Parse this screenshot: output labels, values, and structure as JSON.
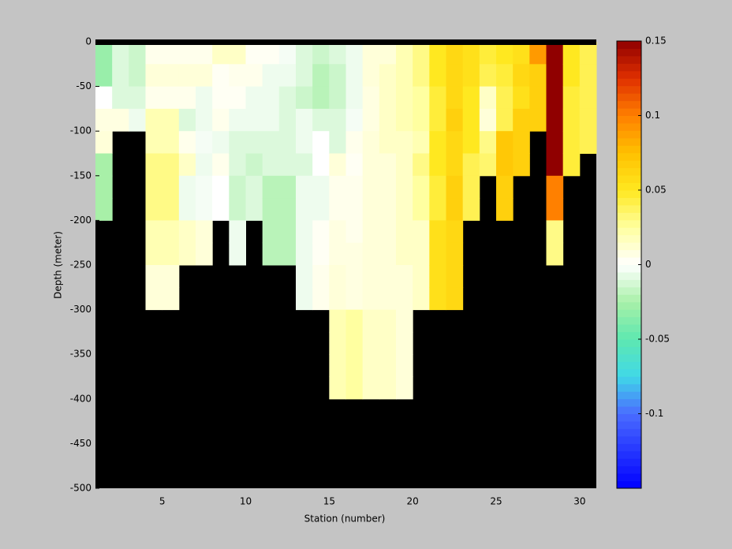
{
  "chart_data": {
    "type": "heatmap",
    "xlabel": "Station (number)",
    "ylabel": "Depth (meter)",
    "x": [
      1,
      2,
      3,
      4,
      5,
      6,
      7,
      8,
      9,
      10,
      11,
      12,
      13,
      14,
      15,
      16,
      17,
      18,
      19,
      20,
      21,
      22,
      23,
      24,
      25,
      26,
      27,
      28,
      29,
      30
    ],
    "y": [
      0,
      -25,
      -50,
      -75,
      -100,
      -125,
      -150,
      -175,
      -200,
      -225,
      -250,
      -275,
      -300,
      -325,
      -350,
      -375,
      -400,
      -425,
      -450,
      -475
    ],
    "z": [
      [
        -0.03,
        -0.03,
        0,
        0.008,
        0.01,
        -0.025,
        -0.025,
        -0.025,
        null,
        null,
        null,
        null,
        null,
        null,
        null,
        null,
        null,
        null,
        null,
        null
      ],
      [
        -0.01,
        -0.01,
        -0.01,
        0.008,
        null,
        null,
        null,
        null,
        null,
        null,
        null,
        null,
        null,
        null,
        null,
        null,
        null,
        null,
        null,
        null
      ],
      [
        -0.015,
        -0.015,
        -0.01,
        -0.005,
        null,
        null,
        null,
        null,
        null,
        null,
        null,
        null,
        null,
        null,
        null,
        null,
        null,
        null,
        null,
        null
      ],
      [
        0.005,
        0.01,
        0.005,
        0.02,
        0.02,
        0.03,
        0.03,
        0.03,
        0.02,
        0.02,
        0.01,
        0.01,
        null,
        null,
        null,
        null,
        null,
        null,
        null,
        null
      ],
      [
        0.005,
        0.01,
        0.005,
        0.02,
        0.02,
        0.03,
        0.03,
        0.03,
        0.02,
        0.02,
        0.01,
        0.01,
        null,
        null,
        null,
        null,
        null,
        null,
        null,
        null
      ],
      [
        0.005,
        0.01,
        0.005,
        -0.01,
        0.005,
        0.015,
        -0.005,
        -0.005,
        0.015,
        0.015,
        null,
        null,
        null,
        null,
        null,
        null,
        null,
        null,
        null,
        null
      ],
      [
        0.005,
        0.01,
        -0.005,
        -0.005,
        -0.003,
        -0.005,
        -0.003,
        -0.003,
        0.01,
        0.01,
        null,
        null,
        null,
        null,
        null,
        null,
        null,
        null,
        null,
        null
      ],
      [
        0.015,
        0.003,
        0.003,
        0.005,
        -0.005,
        0.005,
        0,
        0,
        null,
        null,
        null,
        null,
        null,
        null,
        null,
        null,
        null,
        null,
        null,
        null
      ],
      [
        0.015,
        0.005,
        0.003,
        -0.005,
        -0.01,
        -0.01,
        -0.015,
        -0.015,
        -0.005,
        -0.005,
        null,
        null,
        null,
        null,
        null,
        null,
        null,
        null,
        null,
        null
      ],
      [
        0.003,
        0.005,
        -0.005,
        -0.005,
        -0.01,
        -0.015,
        -0.01,
        -0.01,
        null,
        null,
        null,
        null,
        null,
        null,
        null,
        null,
        null,
        null,
        null,
        null
      ],
      [
        0.003,
        -0.005,
        -0.005,
        -0.005,
        -0.01,
        -0.01,
        -0.02,
        -0.02,
        -0.02,
        -0.02,
        null,
        null,
        null,
        null,
        null,
        null,
        null,
        null,
        null,
        null
      ],
      [
        -0.003,
        -0.005,
        -0.01,
        -0.01,
        -0.01,
        -0.01,
        -0.02,
        -0.02,
        -0.02,
        -0.02,
        null,
        null,
        null,
        null,
        null,
        null,
        null,
        null,
        null,
        null
      ],
      [
        -0.01,
        -0.01,
        -0.015,
        -0.005,
        -0.005,
        -0.01,
        -0.005,
        -0.005,
        -0.005,
        -0.005,
        -0.005,
        -0.005,
        null,
        null,
        null,
        null,
        null,
        null,
        null,
        null
      ],
      [
        -0.015,
        -0.02,
        -0.02,
        -0.01,
        0,
        0,
        -0.005,
        -0.005,
        0.003,
        0.003,
        0.005,
        0.005,
        null,
        null,
        null,
        null,
        null,
        null,
        null,
        null
      ],
      [
        -0.01,
        -0.015,
        -0.015,
        -0.01,
        -0.01,
        0.01,
        0.005,
        0.005,
        0.008,
        0.008,
        0.01,
        0.01,
        0.02,
        0.02,
        0.02,
        0.02,
        null,
        null,
        null,
        null
      ],
      [
        -0.005,
        -0.005,
        -0.005,
        -0.003,
        0.005,
        0.003,
        0.005,
        0.005,
        0.005,
        0.008,
        0.008,
        0.008,
        0.025,
        0.025,
        0.025,
        0.025,
        null,
        null,
        null,
        null
      ],
      [
        0.01,
        0.01,
        0.008,
        0.008,
        0.01,
        0.01,
        0.01,
        0.01,
        0.01,
        0.01,
        0.01,
        0.01,
        0.015,
        0.015,
        0.015,
        0.015,
        null,
        null,
        null,
        null
      ],
      [
        0.01,
        0.015,
        0.015,
        0.015,
        0.015,
        0.01,
        0.01,
        0.01,
        0.01,
        0.01,
        0.01,
        0.01,
        0.015,
        0.015,
        0.015,
        0.015,
        null,
        null,
        null,
        null
      ],
      [
        0.02,
        0.02,
        0.02,
        0.02,
        0.015,
        0.015,
        0.015,
        0.015,
        0.015,
        0.015,
        0.01,
        0.01,
        0.01,
        0.01,
        0.01,
        0.01,
        null,
        null,
        null,
        null
      ],
      [
        0.03,
        0.03,
        0.025,
        0.025,
        0.02,
        0.03,
        0.025,
        0.025,
        0.015,
        0.015,
        0.015,
        0.015,
        null,
        null,
        null,
        null,
        null,
        null,
        null,
        null
      ],
      [
        0.05,
        0.05,
        0.045,
        0.045,
        0.05,
        0.05,
        0.045,
        0.045,
        0.055,
        0.055,
        0.055,
        0.055,
        null,
        null,
        null,
        null,
        null,
        null,
        null,
        null
      ],
      [
        0.06,
        0.06,
        0.06,
        0.065,
        0.06,
        0.06,
        0.065,
        0.065,
        0.06,
        0.06,
        0.06,
        0.06,
        null,
        null,
        null,
        null,
        null,
        null,
        null,
        null
      ],
      [
        0.055,
        0.055,
        0.05,
        0.05,
        0.05,
        0.04,
        0.04,
        0.04,
        null,
        null,
        null,
        null,
        null,
        null,
        null,
        null,
        null,
        null,
        null,
        null
      ],
      [
        0.045,
        0.04,
        0.015,
        0.01,
        0.03,
        0.035,
        null,
        null,
        null,
        null,
        null,
        null,
        null,
        null,
        null,
        null,
        null,
        null,
        null,
        null
      ],
      [
        0.05,
        0.045,
        0.04,
        0.04,
        0.07,
        0.07,
        0.065,
        0.065,
        null,
        null,
        null,
        null,
        null,
        null,
        null,
        null,
        null,
        null,
        null,
        null
      ],
      [
        0.055,
        0.06,
        0.055,
        0.065,
        0.065,
        0.065,
        null,
        null,
        null,
        null,
        null,
        null,
        null,
        null,
        null,
        null,
        null,
        null,
        null,
        null
      ],
      [
        0.09,
        0.065,
        0.065,
        0.065,
        null,
        null,
        null,
        null,
        null,
        null,
        null,
        null,
        null,
        null,
        null,
        null,
        null,
        null,
        null,
        null
      ],
      [
        0.15,
        0.15,
        0.15,
        0.15,
        0.15,
        0.15,
        0.1,
        0.1,
        0.03,
        0.03,
        null,
        null,
        null,
        null,
        null,
        null,
        null,
        null,
        null,
        null
      ],
      [
        0.05,
        0.05,
        0.045,
        0.045,
        0.045,
        0.045,
        null,
        null,
        null,
        null,
        null,
        null,
        null,
        null,
        null,
        null,
        null,
        null,
        null,
        null
      ],
      [
        0.04,
        0.04,
        0.04,
        0.04,
        0.04,
        null,
        null,
        null,
        null,
        null,
        null,
        null,
        null,
        null,
        null,
        null,
        null,
        null,
        null,
        null
      ]
    ],
    "xlim": [
      1,
      31
    ],
    "xticks": [
      5,
      10,
      15,
      20,
      25,
      30
    ],
    "ylim": [
      -500,
      0
    ],
    "yticks": [
      0,
      -50,
      -100,
      -150,
      -200,
      -250,
      -300,
      -350,
      -400,
      -450,
      -500
    ],
    "clim": [
      -0.15,
      0.15
    ],
    "cticks": [
      -0.1,
      -0.05,
      0,
      0.05,
      0.1,
      0.15
    ],
    "missing_color": "#000000",
    "colorscale": [
      [
        -0.15,
        "#0000ff"
      ],
      [
        -0.1,
        "#4a6cff"
      ],
      [
        -0.075,
        "#40d8e8"
      ],
      [
        -0.05,
        "#5ee8b0"
      ],
      [
        -0.025,
        "#a8f0a8"
      ],
      [
        0,
        "#ffffff"
      ],
      [
        0.025,
        "#ffffa0"
      ],
      [
        0.05,
        "#ffe820"
      ],
      [
        0.075,
        "#ffc000"
      ],
      [
        0.1,
        "#ff8000"
      ],
      [
        0.125,
        "#e03000"
      ],
      [
        0.15,
        "#900000"
      ]
    ]
  }
}
